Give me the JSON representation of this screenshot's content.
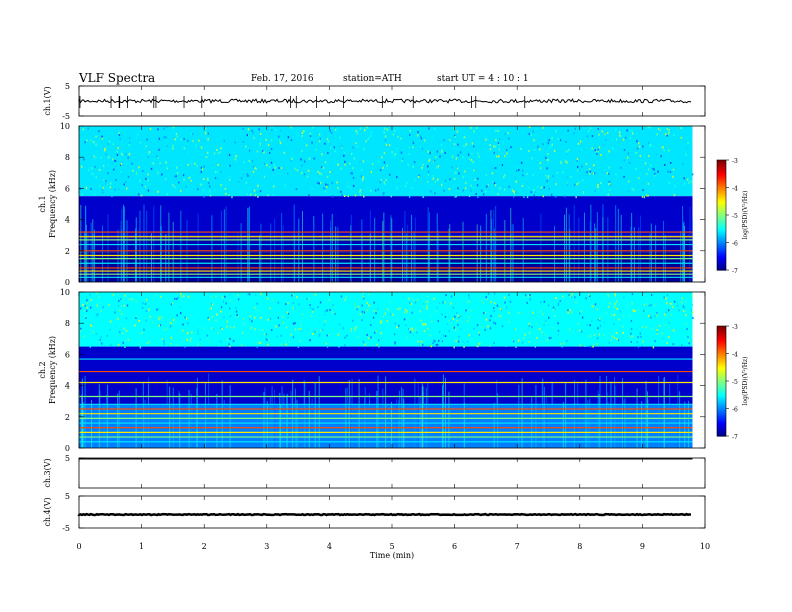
{
  "header": {
    "title": "VLF  Spectra",
    "date": "Feb. 17, 2016",
    "station": "station=ATH",
    "start": "start  UT  =   4  : 10 : 1"
  },
  "chart_data": {
    "type": "heatmap",
    "xlabel": "Time  (min)",
    "xlim": [
      0,
      10
    ],
    "xticks": [
      "0",
      "1",
      "2",
      "3",
      "4",
      "5",
      "6",
      "7",
      "8",
      "9",
      "10"
    ],
    "data_end_min": 9.8,
    "panels": [
      {
        "kind": "waveform",
        "label": "ch.1(V)",
        "ylim": [
          -5,
          5
        ],
        "yticks": [
          "5",
          "-5"
        ],
        "level": 0.0,
        "noise": 0.6
      },
      {
        "kind": "spectrogram",
        "label": "ch.1\nFrequency  (kHz)",
        "ylim": [
          0,
          10
        ],
        "yticks": [
          "0",
          "2",
          "4",
          "6",
          "8",
          "10"
        ],
        "colorbar": {
          "label": "log(PSD)(V²/Hz)",
          "range": [
            -7,
            -3
          ],
          "ticks": [
            "-3",
            "-4",
            "-5",
            "-6",
            "-7"
          ]
        },
        "bands": [
          {
            "f0": 5.5,
            "f1": 10,
            "level": -5.6
          },
          {
            "f0": 3.0,
            "f1": 5.5,
            "level": -6.7
          },
          {
            "f0": 1.9,
            "f1": 3.0,
            "level": -6.8
          },
          {
            "f0": 0.0,
            "f1": 1.9,
            "level": -6.9
          }
        ],
        "lines_khz": [
          0.3,
          0.5,
          0.7,
          0.9,
          1.2,
          1.5,
          1.7,
          2.0,
          2.4,
          2.7,
          2.9,
          3.2
        ]
      },
      {
        "kind": "spectrogram",
        "label": "ch.2\nFrequency  (kHz)",
        "ylim": [
          0,
          10
        ],
        "yticks": [
          "0",
          "2",
          "4",
          "6",
          "8",
          "10"
        ],
        "colorbar": {
          "label": "log(PSD)(V²/Hz)",
          "range": [
            -7,
            -3
          ],
          "ticks": [
            "-3",
            "-4",
            "-5",
            "-6",
            "-7"
          ]
        },
        "bands": [
          {
            "f0": 6.5,
            "f1": 10,
            "level": -5.5
          },
          {
            "f0": 2.8,
            "f1": 6.5,
            "level": -6.7
          },
          {
            "f0": 0.0,
            "f1": 2.8,
            "level": -6.0
          }
        ],
        "lines_khz": [
          0.4,
          0.7,
          1.0,
          1.3,
          1.6,
          1.9,
          2.2,
          2.5,
          2.8,
          3.3,
          4.2,
          4.9,
          5.7
        ]
      },
      {
        "kind": "waveform",
        "label": "ch.3(V)",
        "ylim": [
          -5,
          5
        ],
        "yticks": [
          "5"
        ],
        "level": 4.7,
        "noise": 0.0
      },
      {
        "kind": "waveform",
        "label": "ch.4(V)",
        "ylim": [
          -5,
          5
        ],
        "yticks": [
          "5",
          "-5"
        ],
        "level": -0.8,
        "noise": 0.15
      }
    ]
  }
}
